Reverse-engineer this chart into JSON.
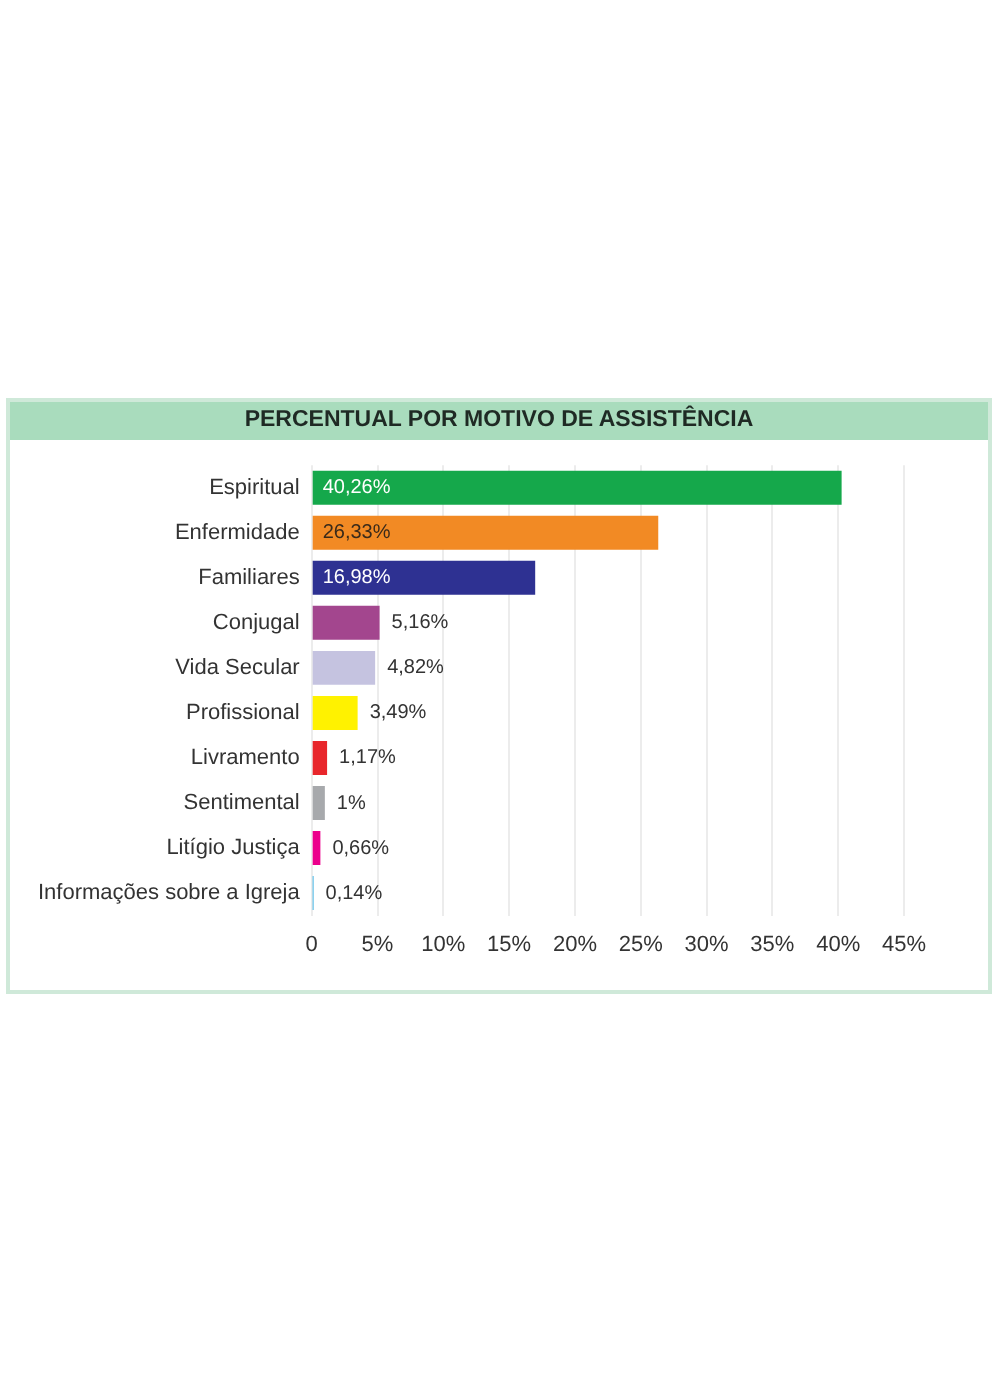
{
  "chart_data": {
    "type": "bar",
    "orientation": "horizontal",
    "title": "PERCENTUAL POR MOTIVO DE ASSISTÊNCIA",
    "categories": [
      "Espiritual",
      "Enfermidade",
      "Familiares",
      "Conjugal",
      "Vida Secular",
      "Profissional",
      "Livramento",
      "Sentimental",
      "Litígio Justiça",
      "Informações sobre a Igreja"
    ],
    "values": [
      40.26,
      26.33,
      16.98,
      5.16,
      4.82,
      3.49,
      1.17,
      1,
      0.66,
      0.14
    ],
    "colors": [
      "#15a84b",
      "#f28a24",
      "#2e3192",
      "#a3468e",
      "#c5c3e0",
      "#fff200",
      "#e8262b",
      "#a7a9ac",
      "#ec008c",
      "#27aae1"
    ],
    "value_labels": [
      "40,26%",
      "26,33%",
      "16,98%",
      "5,16%",
      "4,82%",
      "3,49%",
      "1,17%",
      "1%",
      "0,66%",
      "0,14%"
    ],
    "xlim": [
      0,
      45
    ],
    "xticks": [
      0,
      {
        "value": 5,
        "label": "5%"
      },
      {
        "value": 10,
        "label": "10%"
      },
      {
        "value": 15,
        "label": "15%"
      },
      {
        "value": 20,
        "label": "20%"
      },
      {
        "value": 25,
        "label": "25%"
      },
      {
        "value": 30,
        "label": "30%"
      },
      {
        "value": 35,
        "label": "35%"
      },
      {
        "value": 40,
        "label": "40%"
      },
      {
        "value": 45,
        "label": "45%"
      }
    ],
    "grid": "x"
  }
}
